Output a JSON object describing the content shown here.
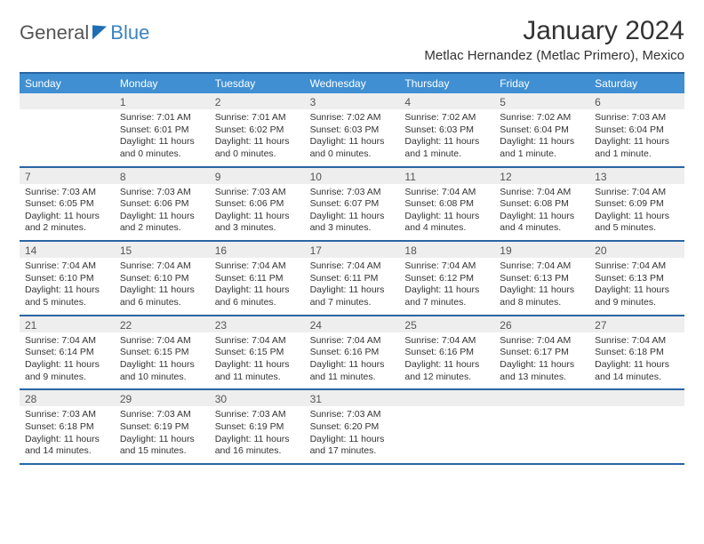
{
  "logo": {
    "text1": "General",
    "text2": "Blue"
  },
  "header": {
    "month_title": "January 2024",
    "location": "Metlac Hernandez (Metlac Primero), Mexico"
  },
  "colors": {
    "header_bg": "#3f8fd2",
    "border": "#2965a2",
    "daynum_bg": "#eeeeee",
    "text": "#333333",
    "logo_blue": "#3b83c0"
  },
  "day_names": [
    "Sunday",
    "Monday",
    "Tuesday",
    "Wednesday",
    "Thursday",
    "Friday",
    "Saturday"
  ],
  "weeks": [
    [
      {
        "n": "",
        "sr": "",
        "ss": "",
        "dl": ""
      },
      {
        "n": "1",
        "sr": "Sunrise: 7:01 AM",
        "ss": "Sunset: 6:01 PM",
        "dl": "Daylight: 11 hours and 0 minutes."
      },
      {
        "n": "2",
        "sr": "Sunrise: 7:01 AM",
        "ss": "Sunset: 6:02 PM",
        "dl": "Daylight: 11 hours and 0 minutes."
      },
      {
        "n": "3",
        "sr": "Sunrise: 7:02 AM",
        "ss": "Sunset: 6:03 PM",
        "dl": "Daylight: 11 hours and 0 minutes."
      },
      {
        "n": "4",
        "sr": "Sunrise: 7:02 AM",
        "ss": "Sunset: 6:03 PM",
        "dl": "Daylight: 11 hours and 1 minute."
      },
      {
        "n": "5",
        "sr": "Sunrise: 7:02 AM",
        "ss": "Sunset: 6:04 PM",
        "dl": "Daylight: 11 hours and 1 minute."
      },
      {
        "n": "6",
        "sr": "Sunrise: 7:03 AM",
        "ss": "Sunset: 6:04 PM",
        "dl": "Daylight: 11 hours and 1 minute."
      }
    ],
    [
      {
        "n": "7",
        "sr": "Sunrise: 7:03 AM",
        "ss": "Sunset: 6:05 PM",
        "dl": "Daylight: 11 hours and 2 minutes."
      },
      {
        "n": "8",
        "sr": "Sunrise: 7:03 AM",
        "ss": "Sunset: 6:06 PM",
        "dl": "Daylight: 11 hours and 2 minutes."
      },
      {
        "n": "9",
        "sr": "Sunrise: 7:03 AM",
        "ss": "Sunset: 6:06 PM",
        "dl": "Daylight: 11 hours and 3 minutes."
      },
      {
        "n": "10",
        "sr": "Sunrise: 7:03 AM",
        "ss": "Sunset: 6:07 PM",
        "dl": "Daylight: 11 hours and 3 minutes."
      },
      {
        "n": "11",
        "sr": "Sunrise: 7:04 AM",
        "ss": "Sunset: 6:08 PM",
        "dl": "Daylight: 11 hours and 4 minutes."
      },
      {
        "n": "12",
        "sr": "Sunrise: 7:04 AM",
        "ss": "Sunset: 6:08 PM",
        "dl": "Daylight: 11 hours and 4 minutes."
      },
      {
        "n": "13",
        "sr": "Sunrise: 7:04 AM",
        "ss": "Sunset: 6:09 PM",
        "dl": "Daylight: 11 hours and 5 minutes."
      }
    ],
    [
      {
        "n": "14",
        "sr": "Sunrise: 7:04 AM",
        "ss": "Sunset: 6:10 PM",
        "dl": "Daylight: 11 hours and 5 minutes."
      },
      {
        "n": "15",
        "sr": "Sunrise: 7:04 AM",
        "ss": "Sunset: 6:10 PM",
        "dl": "Daylight: 11 hours and 6 minutes."
      },
      {
        "n": "16",
        "sr": "Sunrise: 7:04 AM",
        "ss": "Sunset: 6:11 PM",
        "dl": "Daylight: 11 hours and 6 minutes."
      },
      {
        "n": "17",
        "sr": "Sunrise: 7:04 AM",
        "ss": "Sunset: 6:11 PM",
        "dl": "Daylight: 11 hours and 7 minutes."
      },
      {
        "n": "18",
        "sr": "Sunrise: 7:04 AM",
        "ss": "Sunset: 6:12 PM",
        "dl": "Daylight: 11 hours and 7 minutes."
      },
      {
        "n": "19",
        "sr": "Sunrise: 7:04 AM",
        "ss": "Sunset: 6:13 PM",
        "dl": "Daylight: 11 hours and 8 minutes."
      },
      {
        "n": "20",
        "sr": "Sunrise: 7:04 AM",
        "ss": "Sunset: 6:13 PM",
        "dl": "Daylight: 11 hours and 9 minutes."
      }
    ],
    [
      {
        "n": "21",
        "sr": "Sunrise: 7:04 AM",
        "ss": "Sunset: 6:14 PM",
        "dl": "Daylight: 11 hours and 9 minutes."
      },
      {
        "n": "22",
        "sr": "Sunrise: 7:04 AM",
        "ss": "Sunset: 6:15 PM",
        "dl": "Daylight: 11 hours and 10 minutes."
      },
      {
        "n": "23",
        "sr": "Sunrise: 7:04 AM",
        "ss": "Sunset: 6:15 PM",
        "dl": "Daylight: 11 hours and 11 minutes."
      },
      {
        "n": "24",
        "sr": "Sunrise: 7:04 AM",
        "ss": "Sunset: 6:16 PM",
        "dl": "Daylight: 11 hours and 11 minutes."
      },
      {
        "n": "25",
        "sr": "Sunrise: 7:04 AM",
        "ss": "Sunset: 6:16 PM",
        "dl": "Daylight: 11 hours and 12 minutes."
      },
      {
        "n": "26",
        "sr": "Sunrise: 7:04 AM",
        "ss": "Sunset: 6:17 PM",
        "dl": "Daylight: 11 hours and 13 minutes."
      },
      {
        "n": "27",
        "sr": "Sunrise: 7:04 AM",
        "ss": "Sunset: 6:18 PM",
        "dl": "Daylight: 11 hours and 14 minutes."
      }
    ],
    [
      {
        "n": "28",
        "sr": "Sunrise: 7:03 AM",
        "ss": "Sunset: 6:18 PM",
        "dl": "Daylight: 11 hours and 14 minutes."
      },
      {
        "n": "29",
        "sr": "Sunrise: 7:03 AM",
        "ss": "Sunset: 6:19 PM",
        "dl": "Daylight: 11 hours and 15 minutes."
      },
      {
        "n": "30",
        "sr": "Sunrise: 7:03 AM",
        "ss": "Sunset: 6:19 PM",
        "dl": "Daylight: 11 hours and 16 minutes."
      },
      {
        "n": "31",
        "sr": "Sunrise: 7:03 AM",
        "ss": "Sunset: 6:20 PM",
        "dl": "Daylight: 11 hours and 17 minutes."
      },
      {
        "n": "",
        "sr": "",
        "ss": "",
        "dl": ""
      },
      {
        "n": "",
        "sr": "",
        "ss": "",
        "dl": ""
      },
      {
        "n": "",
        "sr": "",
        "ss": "",
        "dl": ""
      }
    ]
  ]
}
